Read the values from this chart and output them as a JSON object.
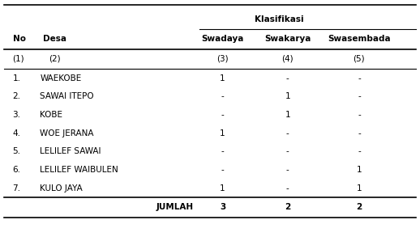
{
  "col_headers_row2": [
    "No",
    "Desa",
    "Swadaya",
    "Swakarya",
    "Swasembada"
  ],
  "col_headers_row3": [
    "(1)",
    "(2)",
    "(3)",
    "(4)",
    "(5)"
  ],
  "rows": [
    [
      "1.",
      "WAEKOBE",
      "1",
      "-",
      "-"
    ],
    [
      "2.",
      "SAWAI ITEPO",
      "-",
      "1",
      "-"
    ],
    [
      "3.",
      "KOBE",
      "-",
      "1",
      "-"
    ],
    [
      "4.",
      "WOE JERANA",
      "1",
      "-",
      "-"
    ],
    [
      "5.",
      "LELILEF SAWAI",
      "-",
      "-",
      "-"
    ],
    [
      "6.",
      "LELILEF WAIBULEN",
      "-",
      "-",
      "1"
    ],
    [
      "7.",
      "KULO JAYA",
      "1",
      "-",
      "1"
    ]
  ],
  "footer": [
    "",
    "JUMLAH",
    "3",
    "2",
    "2"
  ],
  "bg_color": "#ffffff",
  "text_color": "#000000",
  "font_size": 7.5
}
